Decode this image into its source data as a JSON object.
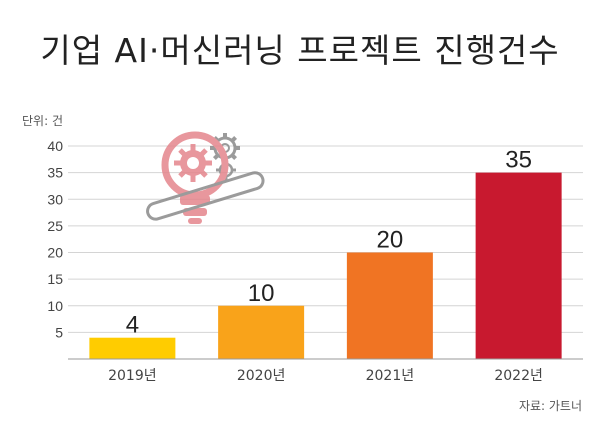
{
  "title": "기업 AI·머신러닝 프로젝트 진행건수",
  "unit_label": "단위: 건",
  "source": "자료: 가트너",
  "chart_data": {
    "type": "bar",
    "categories": [
      "2019년",
      "2020년",
      "2021년",
      "2022년"
    ],
    "values": [
      4,
      10,
      20,
      35
    ],
    "data_labels": [
      "4",
      "10",
      "20",
      "35"
    ],
    "bar_colors": [
      "#FFCC00",
      "#F9A31A",
      "#F07423",
      "#C8192F"
    ],
    "ylim": [
      0,
      40
    ],
    "yticks": [
      5,
      10,
      15,
      20,
      25,
      30,
      35,
      40
    ],
    "grid": true,
    "title": "",
    "xlabel": "",
    "ylabel": ""
  },
  "decoration": {
    "icon": "lightbulb-gear-icon",
    "colors": [
      "#E4868C",
      "#8A8A8A"
    ]
  }
}
